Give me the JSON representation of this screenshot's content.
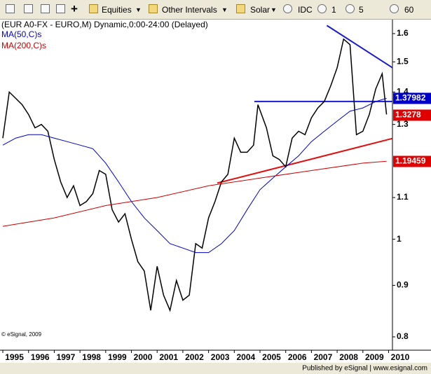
{
  "toolbar": {
    "items": [
      "Equities",
      "Other Intervals",
      "Solar",
      "IDC",
      "1",
      "5",
      "60"
    ]
  },
  "copyright": "© eSignal, 2009",
  "footer": "Published by eSignal | www.esignal.com",
  "chart_data": {
    "type": "line",
    "title": "(EUR A0-FX - EURO,M) Dynamic,0:00-24:00 (Delayed)",
    "log_scale": true,
    "grid": false,
    "xlim": [
      1994.89,
      2010.15
    ],
    "ylim": [
      0.776,
      1.652
    ],
    "xticks": [
      1995,
      1996,
      1997,
      1998,
      1999,
      2000,
      2001,
      2002,
      2003,
      2004,
      2005,
      2006,
      2007,
      2008,
      2009,
      2010
    ],
    "yticks": [
      0.8,
      0.9,
      1,
      1.1,
      1.3,
      1.4,
      1.5,
      1.6
    ],
    "series": [
      {
        "color": "#000000",
        "last_color": "#e00000",
        "last_value": 1.3278,
        "x": [
          1995.0,
          1995.25,
          1995.5,
          1995.75,
          1996.0,
          1996.25,
          1996.5,
          1996.75,
          1997.0,
          1997.25,
          1997.5,
          1997.75,
          1998.0,
          1998.25,
          1998.5,
          1998.75,
          1999.0,
          1999.25,
          1999.5,
          1999.75,
          2000.0,
          2000.25,
          2000.5,
          2000.75,
          2001.0,
          2001.25,
          2001.5,
          2001.75,
          2002.0,
          2002.25,
          2002.5,
          2002.75,
          2003.0,
          2003.25,
          2003.5,
          2003.75,
          2004.0,
          2004.25,
          2004.5,
          2004.75,
          2004.92,
          2005.25,
          2005.5,
          2005.75,
          2006.0,
          2006.25,
          2006.5,
          2006.75,
          2007.0,
          2007.25,
          2007.5,
          2007.75,
          2008.0,
          2008.25,
          2008.5,
          2008.75,
          2009.0,
          2009.25,
          2009.5,
          2009.75,
          2009.92
        ],
        "values": [
          1.26,
          1.4,
          1.38,
          1.36,
          1.33,
          1.29,
          1.3,
          1.28,
          1.2,
          1.14,
          1.1,
          1.13,
          1.08,
          1.09,
          1.11,
          1.17,
          1.16,
          1.07,
          1.04,
          1.06,
          1.0,
          0.95,
          0.93,
          0.85,
          0.94,
          0.88,
          0.85,
          0.91,
          0.87,
          0.88,
          0.99,
          0.98,
          1.05,
          1.09,
          1.14,
          1.16,
          1.26,
          1.22,
          1.22,
          1.24,
          1.36,
          1.29,
          1.21,
          1.2,
          1.18,
          1.26,
          1.28,
          1.27,
          1.32,
          1.35,
          1.37,
          1.42,
          1.48,
          1.58,
          1.56,
          1.27,
          1.28,
          1.33,
          1.41,
          1.46,
          1.33
        ]
      },
      {
        "name": "MA(50,C)s",
        "color": "#0000cc",
        "last_color": "#0000cc",
        "last_value": 1.37982,
        "x": [
          1995.0,
          1995.5,
          1996.0,
          1996.5,
          1997.0,
          1997.5,
          1998.0,
          1998.5,
          1999.0,
          1999.5,
          2000.0,
          2000.5,
          2001.0,
          2001.5,
          2002.0,
          2002.5,
          2003.0,
          2003.5,
          2004.0,
          2004.5,
          2005.0,
          2005.5,
          2006.0,
          2006.5,
          2007.0,
          2007.5,
          2008.0,
          2008.5,
          2009.0,
          2009.5,
          2009.92
        ],
        "values": [
          1.24,
          1.26,
          1.27,
          1.27,
          1.26,
          1.25,
          1.24,
          1.23,
          1.19,
          1.14,
          1.09,
          1.05,
          1.02,
          0.99,
          0.98,
          0.97,
          0.97,
          0.99,
          1.02,
          1.07,
          1.12,
          1.15,
          1.18,
          1.21,
          1.25,
          1.28,
          1.31,
          1.34,
          1.35,
          1.37,
          1.38
        ]
      },
      {
        "name": "MA(200,C)s",
        "color": "#cc0000",
        "last_color": "#e00000",
        "last_value": 1.19459,
        "x": [
          1995.0,
          1997.0,
          1999.0,
          2001.0,
          2003.0,
          2005.0,
          2007.0,
          2009.0,
          2009.92
        ],
        "values": [
          1.03,
          1.05,
          1.08,
          1.1,
          1.13,
          1.15,
          1.17,
          1.19,
          1.195
        ]
      }
    ],
    "trendlines": [
      {
        "color": "#1a1ad0",
        "x": [
          2007.6,
          2010.15
        ],
        "values": [
          1.63,
          1.48
        ]
      },
      {
        "color": "#e01010",
        "x": [
          2003.34,
          2010.15
        ],
        "values": [
          1.137,
          1.259
        ]
      },
      {
        "color": "#1a1ad0",
        "x": [
          2004.78,
          2010.15
        ],
        "values": [
          1.37,
          1.37
        ]
      }
    ]
  }
}
